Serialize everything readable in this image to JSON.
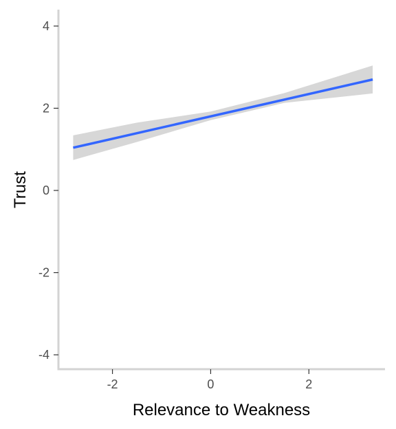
{
  "chart_data": {
    "type": "line",
    "title": "",
    "xlabel": "Relevance to Weakness",
    "ylabel": "Trust",
    "xlim": [
      -3.1,
      3.55
    ],
    "ylim": [
      -4.35,
      4.4
    ],
    "x_ticks": [
      -2,
      0,
      2
    ],
    "y_ticks": [
      -4,
      -2,
      0,
      2,
      4
    ],
    "x_tick_labels": [
      "-2",
      "0",
      "2"
    ],
    "y_tick_labels": [
      "-4",
      "-2",
      "0",
      "2",
      "4"
    ],
    "grid": false,
    "legend": "none",
    "series": [
      {
        "x": [
          -2.8,
          3.3
        ],
        "y": [
          1.04,
          2.7
        ],
        "ci_x": [
          -2.8,
          -1.5,
          0,
          1.5,
          3.3
        ],
        "ci_lower": [
          0.74,
          1.18,
          1.71,
          2.13,
          2.36
        ],
        "ci_upper": [
          1.34,
          1.65,
          1.92,
          2.37,
          3.04
        ]
      }
    ],
    "colors": {
      "line": "#3366FF",
      "ribbon": "#d3d3d3",
      "axis": "#d3d3d3",
      "tick_text": "#4d4d4d",
      "title_text": "#000000"
    }
  }
}
